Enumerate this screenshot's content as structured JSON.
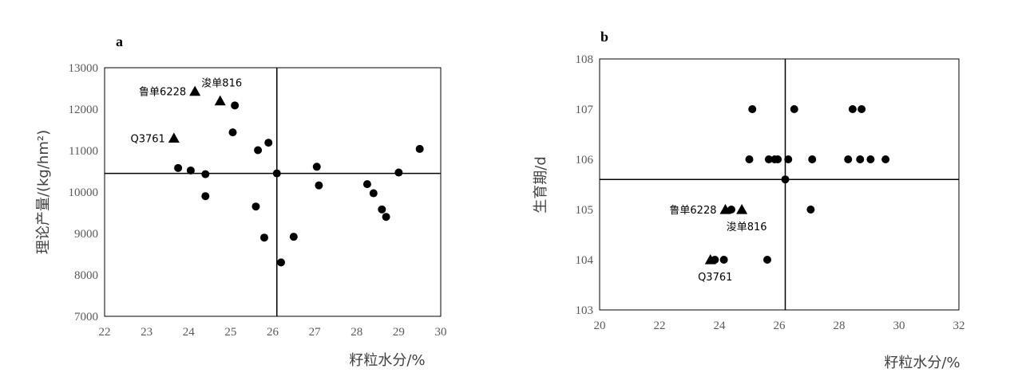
{
  "chart_data": [
    {
      "type": "scatter",
      "panel_label": "a",
      "xlabel": "籽粒水分/%",
      "ylabel": "理论产量/(kg/hm²)",
      "xlim": [
        22,
        30
      ],
      "ylim": [
        7000,
        13000
      ],
      "xticks": [
        22,
        23,
        24,
        25,
        26,
        27,
        28,
        29,
        30
      ],
      "yticks": [
        7000,
        8000,
        9000,
        10000,
        11000,
        12000,
        13000
      ],
      "grid": false,
      "reference_lines": {
        "x": 26.1,
        "y": 10450
      },
      "series": [
        {
          "marker": "circle",
          "points": [
            [
              23.75,
              10580
            ],
            [
              24.05,
              10520
            ],
            [
              24.4,
              10430
            ],
            [
              24.4,
              9900
            ],
            [
              25.05,
              11440
            ],
            [
              25.1,
              12090
            ],
            [
              25.6,
              9650
            ],
            [
              25.65,
              11010
            ],
            [
              25.8,
              8900
            ],
            [
              25.9,
              11190
            ],
            [
              26.1,
              10450
            ],
            [
              26.2,
              8300
            ],
            [
              26.5,
              8920
            ],
            [
              27.05,
              10610
            ],
            [
              27.1,
              10160
            ],
            [
              28.25,
              10190
            ],
            [
              28.4,
              9970
            ],
            [
              28.6,
              9580
            ],
            [
              28.7,
              9400
            ],
            [
              29.0,
              10470
            ],
            [
              29.5,
              11040
            ]
          ]
        },
        {
          "marker": "triangle",
          "points": [
            [
              23.65,
              11300
            ],
            [
              24.15,
              12430
            ],
            [
              24.75,
              12200
            ]
          ]
        }
      ],
      "annotations": [
        {
          "text": "鲁单6228",
          "x": 24.15,
          "y": 12430,
          "anchor": "left"
        },
        {
          "text": "浚单816",
          "x": 24.75,
          "y": 12200,
          "anchor": "above"
        },
        {
          "text": "Q3761",
          "x": 23.65,
          "y": 11300,
          "anchor": "left"
        }
      ]
    },
    {
      "type": "scatter",
      "panel_label": "b",
      "xlabel": "籽粒水分/%",
      "ylabel": "生育期/d",
      "xlim": [
        20,
        32
      ],
      "ylim": [
        103,
        108
      ],
      "xticks": [
        20,
        22,
        24,
        26,
        28,
        30,
        32
      ],
      "yticks": [
        103,
        104,
        105,
        106,
        107,
        108
      ],
      "grid": false,
      "reference_lines": {
        "x": 26.2,
        "y": 105.6
      },
      "series": [
        {
          "marker": "circle",
          "points": [
            [
              23.85,
              104
            ],
            [
              24.15,
              104
            ],
            [
              25.6,
              104
            ],
            [
              24.4,
              105
            ],
            [
              27.05,
              105
            ],
            [
              25.0,
              106
            ],
            [
              25.65,
              106
            ],
            [
              25.85,
              106
            ],
            [
              25.95,
              106
            ],
            [
              26.3,
              106
            ],
            [
              27.1,
              106
            ],
            [
              28.3,
              106
            ],
            [
              28.7,
              106
            ],
            [
              29.05,
              106
            ],
            [
              29.55,
              106
            ],
            [
              25.1,
              107
            ],
            [
              26.5,
              107
            ],
            [
              28.45,
              107
            ],
            [
              28.75,
              107
            ],
            [
              26.2,
              105.6
            ]
          ]
        },
        {
          "marker": "triangle",
          "points": [
            [
              23.7,
              104
            ],
            [
              24.2,
              105
            ],
            [
              24.75,
              105
            ]
          ]
        }
      ],
      "annotations": [
        {
          "text": "鲁单6228",
          "x": 24.2,
          "y": 105,
          "anchor": "left"
        },
        {
          "text": "浚单816",
          "x": 24.75,
          "y": 105,
          "anchor": "below"
        },
        {
          "text": "Q3761",
          "x": 23.7,
          "y": 104,
          "anchor": "below"
        }
      ]
    }
  ]
}
